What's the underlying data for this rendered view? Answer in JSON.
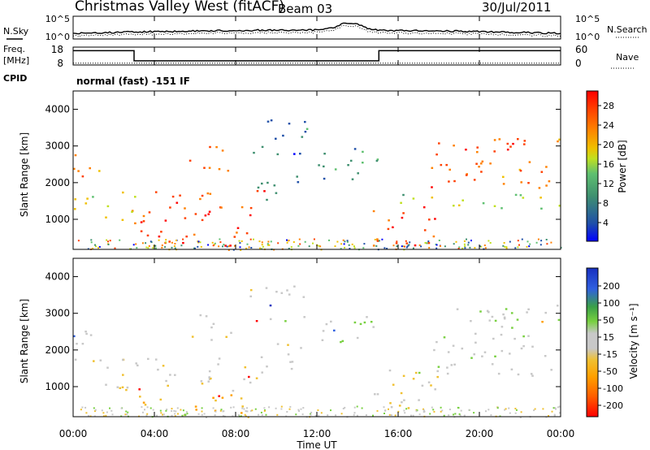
{
  "header": {
    "title": "Christmas Valley West (fitACF)",
    "beam": "Beam 03",
    "date": "30/Jul/2011"
  },
  "noise_panel": {
    "left_label": "N.Sky",
    "right_label": "N.Search",
    "left_ticks": [
      "10^5",
      "10^0"
    ],
    "right_ticks": [
      "10^5",
      "10^0"
    ]
  },
  "freq_panel": {
    "left_label_line1": "Freq.",
    "left_label_line2": "[MHz]",
    "left_ticks": [
      "18",
      "8"
    ],
    "right_ticks": [
      "60",
      "0"
    ],
    "right_label": "Nave",
    "freq_steps": [
      {
        "t0": 0,
        "t1": 3.0,
        "mhz": 16
      },
      {
        "t0": 3.0,
        "t1": 15.05,
        "mhz": 10.3
      },
      {
        "t0": 15.05,
        "t1": 24,
        "mhz": 16
      }
    ],
    "nave_level": 6
  },
  "cpid": {
    "label": "CPID",
    "text": "normal (fast) -151 IF"
  },
  "axes": {
    "xlabel": "Time UT",
    "x_ticks": [
      "00:00",
      "04:00",
      "08:00",
      "12:00",
      "16:00",
      "20:00",
      "00:00"
    ],
    "ylabel": "Slant Range [km]",
    "y_ticks": [
      "4000",
      "3000",
      "2000",
      "1000"
    ],
    "xlim": [
      0,
      24
    ],
    "ylim": [
      180,
      4500
    ]
  },
  "power_colorbar": {
    "label": "Power [dB]",
    "ticks": [
      "28",
      "24",
      "20",
      "16",
      "12",
      "8",
      "4"
    ],
    "colors": [
      "#0000ff",
      "#2050a8",
      "#3f9070",
      "#5fc070",
      "#c0e020",
      "#f0c000",
      "#ff8000",
      "#ff4000",
      "#ff0000"
    ]
  },
  "velocity_colorbar": {
    "label": "Velocity [m s⁻¹]",
    "ticks": [
      "200",
      "100",
      "50",
      "15",
      "-15",
      "-50",
      "-100",
      "-200"
    ],
    "colors": [
      "#1830c0",
      "#3060e0",
      "#3aa048",
      "#78d040",
      "#c8c8c8",
      "#f0c030",
      "#ffa000",
      "#ff6000",
      "#ff0000"
    ]
  },
  "chart_data": {
    "type": "heatmap",
    "title": "Christmas Valley West (fitACF)",
    "xlabel": "Time UT",
    "ylabel": "Slant Range [km]",
    "xlim": [
      0,
      24
    ],
    "ylim": [
      180,
      4500
    ],
    "echo_bands": [
      {
        "t": [
          0.0,
          1.5
        ],
        "r": [
          2000,
          2900
        ],
        "power_db": 24,
        "velocity": 0
      },
      {
        "t": [
          0.0,
          3.0
        ],
        "r": [
          1000,
          1800
        ],
        "power_db": 18,
        "velocity": -10
      },
      {
        "t": [
          2.0,
          3.5
        ],
        "r": [
          700,
          1200
        ],
        "power_db": 26,
        "velocity": -20
      },
      {
        "t": [
          3.0,
          9.5
        ],
        "r": [
          900,
          1800
        ],
        "power_db": 28,
        "velocity": -10
      },
      {
        "t": [
          3.0,
          9.0
        ],
        "r": [
          300,
          800
        ],
        "power_db": 28,
        "velocity": -60
      },
      {
        "t": [
          5.5,
          8.0
        ],
        "r": [
          2300,
          3000
        ],
        "power_db": 24,
        "velocity": 0
      },
      {
        "t": [
          9.0,
          11.5
        ],
        "r": [
          1500,
          2200
        ],
        "power_db": 6,
        "velocity": 0
      },
      {
        "t": [
          8.5,
          11.5
        ],
        "r": [
          2800,
          3800
        ],
        "power_db": 6,
        "velocity": 0
      },
      {
        "t": [
          12.0,
          15.0
        ],
        "r": [
          2000,
          3000
        ],
        "power_db": 8,
        "velocity": 10
      },
      {
        "t": [
          14.5,
          18.0
        ],
        "r": [
          300,
          1400
        ],
        "power_db": 28,
        "velocity": -10
      },
      {
        "t": [
          15.5,
          24.0
        ],
        "r": [
          1300,
          1700
        ],
        "power_db": 14,
        "velocity": 0
      },
      {
        "t": [
          17.5,
          24.0
        ],
        "r": [
          1800,
          3300
        ],
        "power_db": 26,
        "velocity": 5
      }
    ]
  }
}
